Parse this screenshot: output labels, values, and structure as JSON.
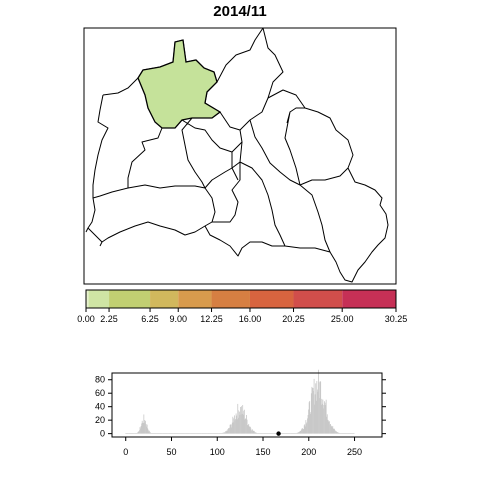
{
  "title": "2014/11",
  "colors": {
    "highlight_fill": "#c5e29a",
    "map_stroke": "#000000",
    "histogram_bar": "#c8c8c8",
    "marker": "#000000"
  },
  "chart_data": [
    {
      "type": "map",
      "highlighted_district": "north-west district"
    },
    {
      "type": "color-legend",
      "breaks": [
        0.0,
        0.25,
        2.25,
        6.25,
        9.0,
        12.25,
        16.0,
        20.25,
        25.0,
        30.25
      ],
      "tick_labels": [
        "0.00",
        "2.25",
        "6.25",
        "9.00",
        "12.25",
        "16.00",
        "20.25",
        "25.00",
        "30.25"
      ],
      "tick_values": [
        0.0,
        2.25,
        6.25,
        9.0,
        12.25,
        16.0,
        20.25,
        25.0,
        30.25
      ],
      "colors": [
        "#e8f2cf",
        "#cfe5a4",
        "#c1cf72",
        "#d1b85d",
        "#d89b4d",
        "#d67f42",
        "#d8643f",
        "#d14e4b",
        "#c63056"
      ]
    },
    {
      "type": "area",
      "xlim": [
        -15,
        280
      ],
      "ylim": [
        -5,
        90
      ],
      "x_ticks": [
        0,
        50,
        100,
        150,
        200,
        250
      ],
      "y_ticks": [
        0,
        20,
        40,
        60,
        80
      ],
      "grid": false,
      "peaks": [
        {
          "center": 20,
          "width": 3,
          "height": 25
        },
        {
          "center": 125,
          "width": 7,
          "height": 42
        },
        {
          "center": 210,
          "width": 8,
          "height": 85
        }
      ],
      "baseline_range": [
        0,
        250
      ],
      "marker": {
        "x": 167,
        "y": 0
      }
    }
  ]
}
